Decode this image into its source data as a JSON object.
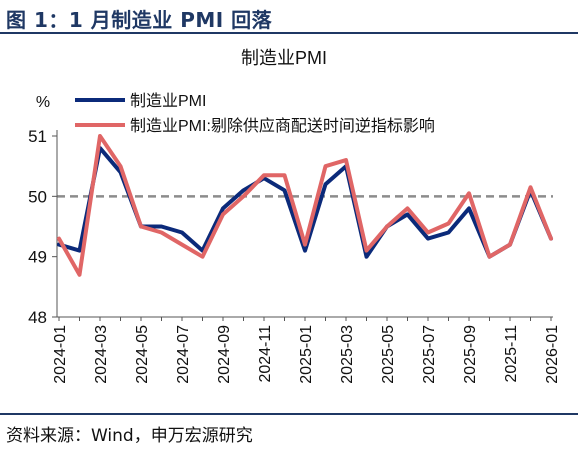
{
  "figure_title": "图 1：1 月制造业 PMI 回落",
  "source": "资料来源：Wind，申万宏源研究",
  "chart_data": {
    "type": "line",
    "title": "制造业PMI",
    "ylabel": "%",
    "ylim": [
      48,
      51
    ],
    "y_ticks": [
      48,
      49,
      50,
      51
    ],
    "x_tick_labels": [
      "2024-01",
      "2024-03",
      "2024-05",
      "2024-07",
      "2024-09",
      "2024-11",
      "2025-01",
      "2025-03",
      "2025-05",
      "2025-07",
      "2025-09",
      "2025-11",
      "2026-01"
    ],
    "x": [
      "2024-01",
      "2024-02",
      "2024-03",
      "2024-04",
      "2024-05",
      "2024-06",
      "2024-07",
      "2024-08",
      "2024-09",
      "2024-10",
      "2024-11",
      "2024-12",
      "2025-01",
      "2025-02",
      "2025-03",
      "2025-04",
      "2025-05",
      "2025-06",
      "2025-07",
      "2025-08",
      "2025-09",
      "2025-10",
      "2025-11",
      "2025-12",
      "2026-01"
    ],
    "reference_line": 50,
    "legend_position": "top-left",
    "series": [
      {
        "name": "制造业PMI",
        "color": "#0b2a7a",
        "values": [
          49.2,
          49.1,
          50.8,
          50.4,
          49.5,
          49.5,
          49.4,
          49.1,
          49.8,
          50.1,
          50.3,
          50.1,
          49.1,
          50.2,
          50.5,
          49.0,
          49.5,
          49.7,
          49.3,
          49.4,
          49.8,
          49.0,
          49.2,
          50.1,
          49.3
        ]
      },
      {
        "name": "制造业PMI:剔除供应商配送时间逆指标影响",
        "color": "#e06666",
        "values": [
          49.3,
          48.7,
          51.0,
          50.5,
          49.5,
          49.4,
          49.2,
          49.0,
          49.7,
          50.0,
          50.35,
          50.35,
          49.2,
          50.5,
          50.6,
          49.1,
          49.5,
          49.8,
          49.4,
          49.55,
          50.05,
          49.0,
          49.2,
          50.15,
          49.3
        ]
      }
    ]
  }
}
